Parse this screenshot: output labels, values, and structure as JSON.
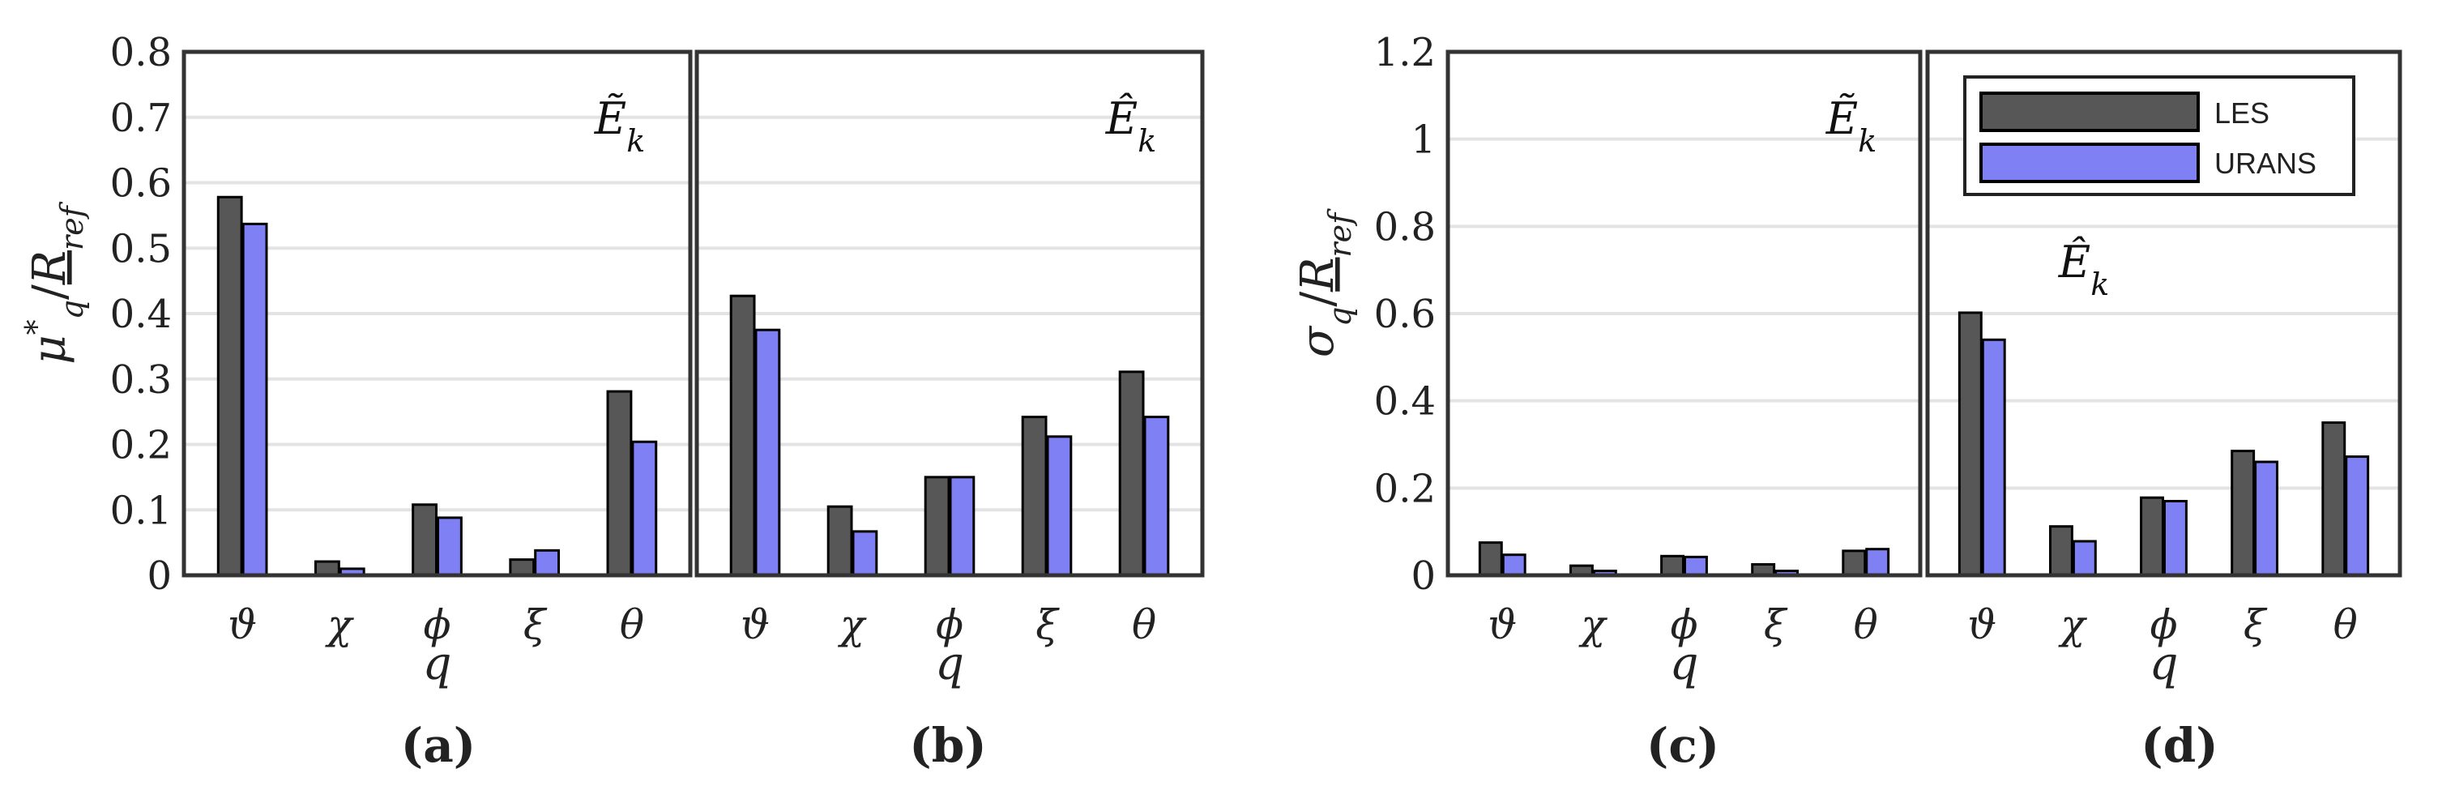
{
  "colors": {
    "les": "#575757",
    "urans": "#8080f5",
    "edge": "#000000"
  },
  "legend": {
    "items": [
      "LES",
      "URANS"
    ]
  },
  "chart_data": [
    {
      "type": "bar",
      "panel": "(a)",
      "annotation": "Ẽ_k",
      "annotation_text": "Ẽ",
      "categories": [
        "ϑ",
        "χ",
        "ϕ",
        "ξ",
        "θ"
      ],
      "xlabel": "q",
      "ylabel": "μ*_q / R_ref",
      "ylim": [
        0,
        0.8
      ],
      "yticks": [
        "0",
        "0.1",
        "0.2",
        "0.3",
        "0.4",
        "0.5",
        "0.6",
        "0.7",
        "0.8"
      ],
      "series": [
        {
          "name": "LES",
          "values": [
            0.578,
            0.021,
            0.108,
            0.024,
            0.281
          ]
        },
        {
          "name": "URANS",
          "values": [
            0.537,
            0.01,
            0.088,
            0.038,
            0.204
          ]
        }
      ]
    },
    {
      "type": "bar",
      "panel": "(b)",
      "annotation": "Ê_k",
      "annotation_text": "Ê",
      "categories": [
        "ϑ",
        "χ",
        "ϕ",
        "ξ",
        "θ"
      ],
      "xlabel": "q",
      "ylim": [
        0,
        0.8
      ],
      "series": [
        {
          "name": "LES",
          "values": [
            0.427,
            0.105,
            0.15,
            0.242,
            0.311
          ]
        },
        {
          "name": "URANS",
          "values": [
            0.375,
            0.067,
            0.15,
            0.212,
            0.242
          ]
        }
      ]
    },
    {
      "type": "bar",
      "panel": "(c)",
      "annotation": "Ẽ_k",
      "annotation_text": "Ẽ",
      "categories": [
        "ϑ",
        "χ",
        "ϕ",
        "ξ",
        "θ"
      ],
      "xlabel": "q",
      "ylabel": "σ_q / R_ref",
      "ylim": [
        0,
        1.2
      ],
      "yticks": [
        "0",
        "0.2",
        "0.4",
        "0.6",
        "0.8",
        "1",
        "1.2"
      ],
      "series": [
        {
          "name": "LES",
          "values": [
            0.075,
            0.022,
            0.044,
            0.025,
            0.056
          ]
        },
        {
          "name": "URANS",
          "values": [
            0.047,
            0.01,
            0.042,
            0.01,
            0.06
          ]
        }
      ]
    },
    {
      "type": "bar",
      "panel": "(d)",
      "annotation": "Ê_k",
      "annotation_text": "Ê",
      "categories": [
        "ϑ",
        "χ",
        "ϕ",
        "ξ",
        "θ"
      ],
      "xlabel": "q",
      "ylim": [
        0,
        1.2
      ],
      "series": [
        {
          "name": "LES",
          "values": [
            0.602,
            0.112,
            0.178,
            0.285,
            0.35
          ]
        },
        {
          "name": "URANS",
          "values": [
            0.54,
            0.078,
            0.17,
            0.26,
            0.272
          ]
        }
      ]
    }
  ]
}
